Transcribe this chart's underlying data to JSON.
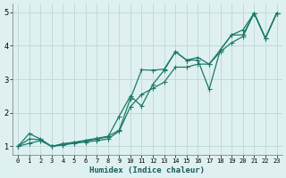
{
  "title": "",
  "xlabel": "Humidex (Indice chaleur)",
  "ylabel": "",
  "bg_color": "#dff0f0",
  "grid_color": "#c2dada",
  "line_color": "#1a7a6a",
  "xlim": [
    -0.5,
    23.5
  ],
  "ylim": [
    0.75,
    5.25
  ],
  "yticks": [
    1,
    2,
    3,
    4,
    5
  ],
  "xticks": [
    0,
    1,
    2,
    3,
    4,
    5,
    6,
    7,
    8,
    9,
    10,
    11,
    12,
    13,
    14,
    15,
    16,
    17,
    18,
    19,
    20,
    21,
    22,
    23
  ],
  "line1_x": [
    0,
    1,
    2,
    3,
    4,
    5,
    6,
    7,
    8,
    9,
    10,
    11,
    12,
    13,
    14,
    15,
    16,
    17,
    18,
    19,
    20,
    21,
    22,
    23
  ],
  "line1_y": [
    1.0,
    1.38,
    1.22,
    1.0,
    1.06,
    1.12,
    1.16,
    1.22,
    1.28,
    1.9,
    2.5,
    2.2,
    2.85,
    3.27,
    3.82,
    3.57,
    3.65,
    3.45,
    3.88,
    4.32,
    4.32,
    4.97,
    4.22,
    4.97
  ],
  "line2_x": [
    0,
    1,
    2,
    3,
    4,
    5,
    6,
    7,
    8,
    9,
    10,
    11,
    12,
    13,
    14,
    15,
    16,
    17,
    18,
    19,
    20,
    21,
    22,
    23
  ],
  "line2_y": [
    1.0,
    1.22,
    1.2,
    1.0,
    1.08,
    1.12,
    1.18,
    1.24,
    1.3,
    1.48,
    2.42,
    3.28,
    3.27,
    3.3,
    3.82,
    3.57,
    3.57,
    2.7,
    3.88,
    4.32,
    4.47,
    4.97,
    4.22,
    4.97
  ],
  "line3_x": [
    0,
    1,
    2,
    3,
    4,
    5,
    6,
    7,
    8,
    9,
    10,
    11,
    12,
    13,
    14,
    15,
    16,
    17,
    18,
    19,
    20,
    21,
    22,
    23
  ],
  "line3_y": [
    1.0,
    1.09,
    1.17,
    1.0,
    1.04,
    1.09,
    1.13,
    1.17,
    1.22,
    1.45,
    2.18,
    2.55,
    2.73,
    2.91,
    3.36,
    3.36,
    3.45,
    3.45,
    3.82,
    4.09,
    4.27,
    4.97,
    4.22,
    4.97
  ]
}
